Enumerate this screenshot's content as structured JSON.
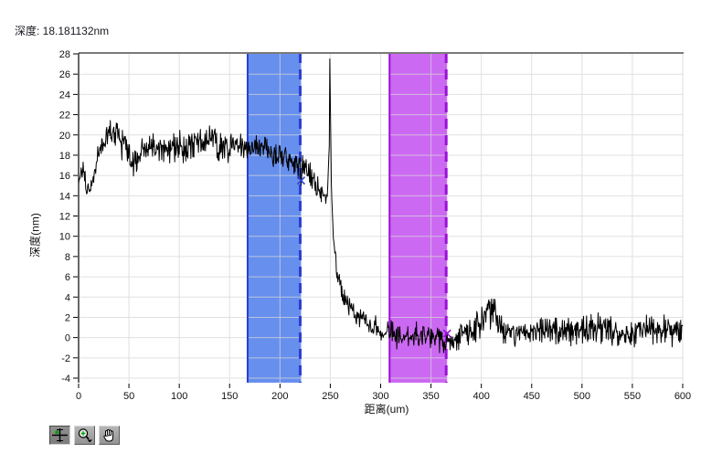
{
  "header": {
    "depth_label": "深度: 18.181132nm"
  },
  "colors": {
    "line": "#000000",
    "grid": "#d6d6d6",
    "axis": "#000000",
    "frame_top": "#7a7a7a",
    "band_blue_fill": "#668fee",
    "band_blue_edge": "#2a3fd0",
    "band_magenta_fill": "#cc69f2",
    "band_magenta_edge": "#9a10d8",
    "tool_green": "#00a000"
  },
  "chart_data": {
    "type": "line",
    "title": "",
    "xlabel": "距离(um)",
    "ylabel": "深度(nm)",
    "xlim": [
      0,
      600
    ],
    "ylim": [
      -4,
      28
    ],
    "x_ticks": [
      0,
      50,
      100,
      150,
      200,
      250,
      300,
      350,
      400,
      450,
      500,
      550,
      600
    ],
    "y_ticks": [
      28,
      26,
      24,
      22,
      20,
      18,
      16,
      14,
      12,
      10,
      8,
      6,
      4,
      2,
      0,
      -2,
      -4
    ],
    "grid": true,
    "legend": "none",
    "series": [
      {
        "name": "depth-profile",
        "description": "noisy step-height profile: ~18-20nm plateau for 0-240um, sharp spike to 27.5nm at 250um, drop to ~0nm baseline for 270-600um",
        "noise_seed": 1337,
        "step_um": 0.5,
        "keypoints_x_y_noise": [
          [
            0,
            15.2,
            0.5
          ],
          [
            4,
            16.8,
            0.8
          ],
          [
            8,
            15.0,
            0.8
          ],
          [
            12,
            14.6,
            0.6
          ],
          [
            18,
            17.5,
            0.9
          ],
          [
            25,
            19.2,
            1.0
          ],
          [
            33,
            20.2,
            1.1
          ],
          [
            40,
            19.6,
            1.1
          ],
          [
            48,
            18.2,
            1.2
          ],
          [
            55,
            16.9,
            1.2
          ],
          [
            62,
            18.6,
            1.0
          ],
          [
            72,
            19.3,
            1.0
          ],
          [
            80,
            18.6,
            1.0
          ],
          [
            90,
            18.4,
            1.0
          ],
          [
            100,
            19.0,
            1.0
          ],
          [
            110,
            18.6,
            1.0
          ],
          [
            120,
            19.2,
            1.0
          ],
          [
            130,
            19.6,
            0.9
          ],
          [
            140,
            18.9,
            1.0
          ],
          [
            150,
            18.6,
            1.0
          ],
          [
            160,
            18.9,
            0.9
          ],
          [
            170,
            18.5,
            0.9
          ],
          [
            180,
            18.8,
            0.9
          ],
          [
            190,
            18.4,
            0.9
          ],
          [
            200,
            18.0,
            0.9
          ],
          [
            210,
            17.4,
            0.9
          ],
          [
            218,
            16.9,
            1.0
          ],
          [
            226,
            16.3,
            1.0
          ],
          [
            234,
            15.3,
            0.9
          ],
          [
            242,
            14.4,
            0.7
          ],
          [
            247,
            13.9,
            0.4
          ],
          [
            249,
            19.0,
            0.2
          ],
          [
            249.5,
            27.5,
            0
          ],
          [
            251,
            15.5,
            0.3
          ],
          [
            253,
            9.8,
            0.5
          ],
          [
            257,
            6.2,
            0.6
          ],
          [
            262,
            4.3,
            0.7
          ],
          [
            270,
            2.9,
            0.7
          ],
          [
            280,
            2.1,
            0.8
          ],
          [
            292,
            1.1,
            0.8
          ],
          [
            305,
            0.3,
            0.9
          ],
          [
            320,
            0.0,
            0.9
          ],
          [
            335,
            0.2,
            0.9
          ],
          [
            350,
            0.3,
            0.9
          ],
          [
            362,
            -0.2,
            0.9
          ],
          [
            372,
            -0.4,
            0.8
          ],
          [
            382,
            0.3,
            0.9
          ],
          [
            394,
            0.9,
            1.0
          ],
          [
            404,
            2.0,
            1.2
          ],
          [
            411,
            2.7,
            1.3
          ],
          [
            418,
            1.2,
            1.1
          ],
          [
            430,
            0.3,
            1.0
          ],
          [
            445,
            0.7,
            1.1
          ],
          [
            460,
            0.7,
            1.0
          ],
          [
            475,
            0.4,
            1.0
          ],
          [
            490,
            0.5,
            1.0
          ],
          [
            505,
            0.9,
            1.1
          ],
          [
            520,
            1.0,
            1.1
          ],
          [
            535,
            0.4,
            1.0
          ],
          [
            550,
            0.4,
            1.0
          ],
          [
            565,
            0.7,
            1.1
          ],
          [
            580,
            0.6,
            1.0
          ],
          [
            600,
            0.6,
            0.9
          ]
        ]
      }
    ],
    "cursor_regions": [
      {
        "name": "blue-cursor-region",
        "x0_um": 167,
        "x1_um": 221,
        "fill": "#668fee",
        "edge": "#2a3fd0",
        "left_edge_style": "solid",
        "right_edge_style": "dashed",
        "marker": {
          "x_um": 221,
          "y_nm": 15.5
        }
      },
      {
        "name": "magenta-cursor-region",
        "x0_um": 308,
        "x1_um": 366,
        "fill": "#cc69f2",
        "edge": "#9a10d8",
        "left_edge_style": "solid",
        "right_edge_style": "dashed",
        "marker": {
          "x_um": 366,
          "y_nm": 0.4
        }
      }
    ]
  },
  "toolbar": {
    "tools": [
      {
        "name": "cursor-move-tool",
        "icon": "crosshair-icon",
        "active": true
      },
      {
        "name": "zoom-tool",
        "icon": "magnifier-icon",
        "active": false
      },
      {
        "name": "pan-tool",
        "icon": "hand-icon",
        "active": false
      }
    ]
  }
}
